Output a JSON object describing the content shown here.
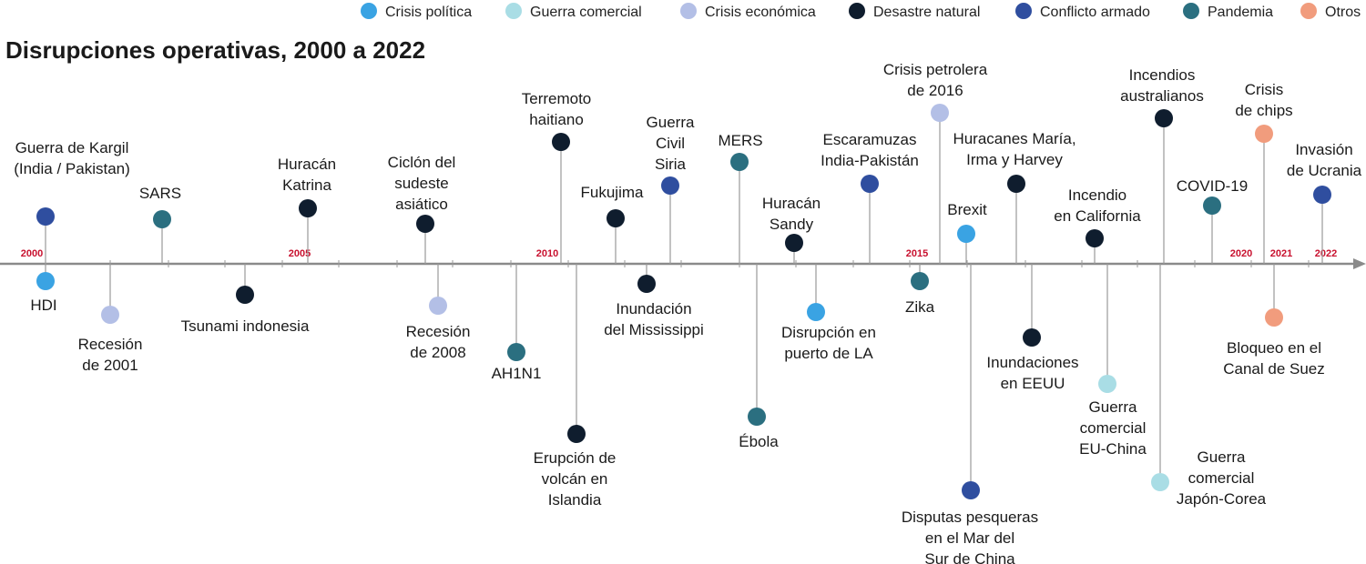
{
  "title": "Disrupciones operativas, 2000 a 2022",
  "colors": {
    "politica": "#3aa3e3",
    "comercial": "#a9dde5",
    "economica": "#b3bfe6",
    "natural": "#0f1d2e",
    "armado": "#2f4e9f",
    "pandemia": "#2b6f80",
    "otros": "#f19c7d",
    "axis": "#8a8a8a",
    "year_label": "#c8102e"
  },
  "legend": [
    {
      "key": "politica",
      "label": "Crisis política"
    },
    {
      "key": "comercial",
      "label": "Guerra comercial"
    },
    {
      "key": "economica",
      "label": "Crisis económica"
    },
    {
      "key": "natural",
      "label": "Desastre natural"
    },
    {
      "key": "armado",
      "label": "Conflicto armado"
    },
    {
      "key": "pandemia",
      "label": "Pandemia"
    },
    {
      "key": "otros",
      "label": "Otros"
    }
  ],
  "year_labels": [
    "2000",
    "2005",
    "2010",
    "2015",
    "2020",
    "2021",
    "2022"
  ],
  "events": [
    {
      "label": [
        "Guerra de Kargil",
        "(India / Pakistan)"
      ],
      "category": "armado"
    },
    {
      "label": [
        "HDI"
      ],
      "category": "politica"
    },
    {
      "label": [
        "Recesión",
        "de 2001"
      ],
      "category": "economica"
    },
    {
      "label": [
        "SARS"
      ],
      "category": "pandemia"
    },
    {
      "label": [
        "Tsunami indonesia"
      ],
      "category": "natural"
    },
    {
      "label": [
        "Huracán",
        "Katrina"
      ],
      "category": "natural"
    },
    {
      "label": [
        "Ciclón del",
        "sudeste",
        "asiático"
      ],
      "category": "natural"
    },
    {
      "label": [
        "Recesión",
        "de 2008"
      ],
      "category": "economica"
    },
    {
      "label": [
        "AH1N1"
      ],
      "category": "pandemia"
    },
    {
      "label": [
        "Terremoto",
        "haitiano"
      ],
      "category": "natural"
    },
    {
      "label": [
        "Erupción de",
        "volcán en",
        "Islandia"
      ],
      "category": "natural"
    },
    {
      "label": [
        "Fukujima"
      ],
      "category": "natural"
    },
    {
      "label": [
        "Inundación",
        "del Mississippi"
      ],
      "category": "natural"
    },
    {
      "label": [
        "Guerra",
        "Civil",
        "Siria"
      ],
      "category": "armado"
    },
    {
      "label": [
        "MERS"
      ],
      "category": "pandemia"
    },
    {
      "label": [
        "Ébola"
      ],
      "category": "pandemia"
    },
    {
      "label": [
        "Huracán",
        "Sandy"
      ],
      "category": "natural"
    },
    {
      "label": [
        "Disrupción en",
        "puerto de LA"
      ],
      "category": "politica"
    },
    {
      "label": [
        "Escaramuzas",
        "India-Pakistán"
      ],
      "category": "armado"
    },
    {
      "label": [
        "Zika"
      ],
      "category": "pandemia"
    },
    {
      "label": [
        "Crisis petrolera",
        "de 2016"
      ],
      "category": "economica"
    },
    {
      "label": [
        "Brexit"
      ],
      "category": "politica"
    },
    {
      "label": [
        "Disputas pesqueras",
        "en el Mar del",
        "Sur de China"
      ],
      "category": "armado"
    },
    {
      "label": [
        "Huracanes María,",
        "Irma y Harvey"
      ],
      "category": "natural"
    },
    {
      "label": [
        "Inundaciones",
        "en EEUU"
      ],
      "category": "natural"
    },
    {
      "label": [
        "Incendio",
        "en California"
      ],
      "category": "natural"
    },
    {
      "label": [
        "Guerra",
        "comercial",
        "EU-China"
      ],
      "category": "comercial"
    },
    {
      "label": [
        "Incendios",
        "australianos"
      ],
      "category": "natural"
    },
    {
      "label": [
        "Guerra",
        "comercial",
        "Japón-Corea"
      ],
      "category": "comercial"
    },
    {
      "label": [
        "COVID-19"
      ],
      "category": "pandemia"
    },
    {
      "label": [
        "Crisis",
        "de chips"
      ],
      "category": "otros"
    },
    {
      "label": [
        "Bloqueo en el",
        "Canal de Suez"
      ],
      "category": "otros"
    },
    {
      "label": [
        "Invasión",
        "de Ucrania"
      ],
      "category": "armado"
    }
  ]
}
